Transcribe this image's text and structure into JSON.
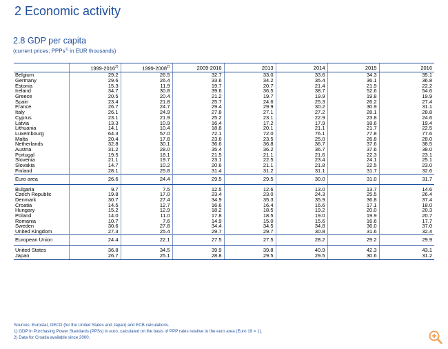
{
  "page": {
    "title": "2 Economic activity"
  },
  "table": {
    "title": "2.8 GDP per capita",
    "subtitle": "(current prices; PPPs",
    "subtitle_sup": "1)",
    "subtitle_rest": " in EUR thousands)",
    "columns": [
      {
        "label": "1999-2016",
        "sup": "2)"
      },
      {
        "label": "1999-2008",
        "sup": "2)"
      },
      {
        "label": "2009-2016",
        "sup": ""
      },
      {
        "label": "2013",
        "sup": ""
      },
      {
        "label": "2014",
        "sup": ""
      },
      {
        "label": "2015",
        "sup": ""
      },
      {
        "label": "2016",
        "sup": ""
      }
    ],
    "groups": [
      {
        "kind": "rows",
        "rows": [
          {
            "country": "Belgium",
            "values": [
              "29.2",
              "26.5",
              "32.7",
              "33.0",
              "33.6",
              "34.3",
              "35.1"
            ]
          },
          {
            "country": "Germany",
            "values": [
              "29.6",
              "26.4",
              "33.6",
              "34.2",
              "35.4",
              "36.1",
              "36.8"
            ]
          },
          {
            "country": "Estonia",
            "values": [
              "15.3",
              "11.9",
              "19.7",
              "20.7",
              "21.4",
              "21.9",
              "22.2"
            ]
          },
          {
            "country": "Ireland",
            "values": [
              "34.7",
              "30.8",
              "39.6",
              "36.5",
              "38.7",
              "52.6",
              "54.6"
            ]
          },
          {
            "country": "Greece",
            "values": [
              "20.5",
              "20.4",
              "21.2",
              "19.7",
              "19.9",
              "19.8",
              "19.9"
            ]
          },
          {
            "country": "Spain",
            "values": [
              "23.4",
              "21.8",
              "25.7",
              "24.6",
              "25.3",
              "26.2",
              "27.4"
            ]
          },
          {
            "country": "France",
            "values": [
              "26.7",
              "24.7",
              "29.4",
              "29.9",
              "30.2",
              "30.9",
              "31.1"
            ]
          },
          {
            "country": "Italy",
            "values": [
              "26.1",
              "24.9",
              "27.8",
              "27.1",
              "27.2",
              "28.1",
              "28.8"
            ]
          },
          {
            "country": "Cyprus",
            "values": [
              "23.1",
              "21.9",
              "25.2",
              "23.1",
              "22.9",
              "23.8",
              "24.6"
            ]
          },
          {
            "country": "Latvia",
            "values": [
              "13.3",
              "10.9",
              "16.4",
              "17.2",
              "17.9",
              "18.6",
              "19.4"
            ]
          },
          {
            "country": "Lithuania",
            "values": [
              "14.1",
              "10.4",
              "18.8",
              "20.1",
              "21.1",
              "21.7",
              "22.5"
            ]
          },
          {
            "country": "Luxembourg",
            "values": [
              "64.3",
              "57.0",
              "72.1",
              "72.0",
              "76.1",
              "77.8",
              "77.6"
            ]
          },
          {
            "country": "Malta",
            "values": [
              "20.4",
              "17.8",
              "23.6",
              "23.5",
              "25.0",
              "26.8",
              "28.0"
            ]
          },
          {
            "country": "Netherlands",
            "values": [
              "32.8",
              "30.1",
              "36.6",
              "36.8",
              "36.7",
              "37.6",
              "38.5"
            ]
          },
          {
            "country": "Austria",
            "values": [
              "31.2",
              "28.0",
              "35.4",
              "36.2",
              "36.7",
              "37.6",
              "38.0"
            ]
          },
          {
            "country": "Portugal",
            "values": [
              "19.5",
              "18.1",
              "21.5",
              "21.1",
              "21.6",
              "22.3",
              "23.1"
            ]
          },
          {
            "country": "Slovenia",
            "values": [
              "21.1",
              "19.7",
              "23.1",
              "22.5",
              "23.4",
              "24.1",
              "25.1"
            ]
          },
          {
            "country": "Slovakia",
            "values": [
              "14.7",
              "10.2",
              "20.6",
              "21.1",
              "21.8",
              "22.5",
              "23.0"
            ]
          },
          {
            "country": "Finland",
            "values": [
              "28.1",
              "25.8",
              "31.4",
              "31.2",
              "31.1",
              "31.7",
              "32.6"
            ]
          }
        ]
      },
      {
        "kind": "agg",
        "row": {
          "country": "Euro area",
          "values": [
            "26.6",
            "24.4",
            "29.5",
            "29.5",
            "30.0",
            "31.0",
            "31.7"
          ]
        }
      },
      {
        "kind": "rows",
        "rows": [
          {
            "country": "Bulgaria",
            "values": [
              "9.7",
              "7.5",
              "12.5",
              "12.6",
              "13.0",
              "13.7",
              "14.6"
            ]
          },
          {
            "country": "Czech Republic",
            "values": [
              "19.8",
              "17.0",
              "23.4",
              "23.0",
              "24.3",
              "25.5",
              "26.4"
            ]
          },
          {
            "country": "Denmark",
            "values": [
              "30.7",
              "27.4",
              "34.9",
              "35.3",
              "35.9",
              "36.8",
              "37.4"
            ]
          },
          {
            "country": "Croatia",
            "values": [
              "14.5",
              "12.7",
              "16.6",
              "16.4",
              "16.6",
              "17.1",
              "18.0"
            ]
          },
          {
            "country": "Hungary",
            "values": [
              "15.2",
              "12.9",
              "18.2",
              "18.5",
              "19.2",
              "20.0",
              "20.3"
            ]
          },
          {
            "country": "Poland",
            "values": [
              "14.0",
              "11.0",
              "17.8",
              "18.5",
              "19.0",
              "19.9",
              "20.7"
            ]
          },
          {
            "country": "Romania",
            "values": [
              "10.7",
              "7.6",
              "14.9",
              "15.0",
              "15.6",
              "16.6",
              "17.7"
            ]
          },
          {
            "country": "Sweden",
            "values": [
              "30.6",
              "27.8",
              "34.4",
              "34.5",
              "34.8",
              "36.0",
              "37.0"
            ]
          },
          {
            "country": "United Kingdom",
            "values": [
              "27.3",
              "25.4",
              "29.7",
              "29.7",
              "30.8",
              "31.6",
              "32.4"
            ]
          }
        ]
      },
      {
        "kind": "agg",
        "row": {
          "country": "European Union",
          "values": [
            "24.4",
            "22.1",
            "27.5",
            "27.5",
            "28.2",
            "29.2",
            "29.9"
          ]
        }
      },
      {
        "kind": "rows",
        "last": true,
        "rows": [
          {
            "country": "United States",
            "values": [
              "36.8",
              "34.5",
              "39.9",
              "39.8",
              "40.9",
              "42.3",
              "43.1"
            ]
          },
          {
            "country": "Japan",
            "values": [
              "26.7",
              "25.1",
              "28.8",
              "29.5",
              "29.5",
              "30.6",
              "31.2"
            ]
          }
        ]
      }
    ]
  },
  "notes": {
    "source": "Sources: Eurostat, OECD (for the United States and Japan) and ECB calculations.",
    "note1": "1) GDP in Purchasing Power Standards (PPSs) in euro, calculated on the basis of PPP rates relative to the euro area (Euro 19 = 1).",
    "note2": "2) Data for Croatia available since 2000."
  },
  "zoom_button": {
    "icon": "zoom-in-icon",
    "color": "#f0a35a"
  }
}
